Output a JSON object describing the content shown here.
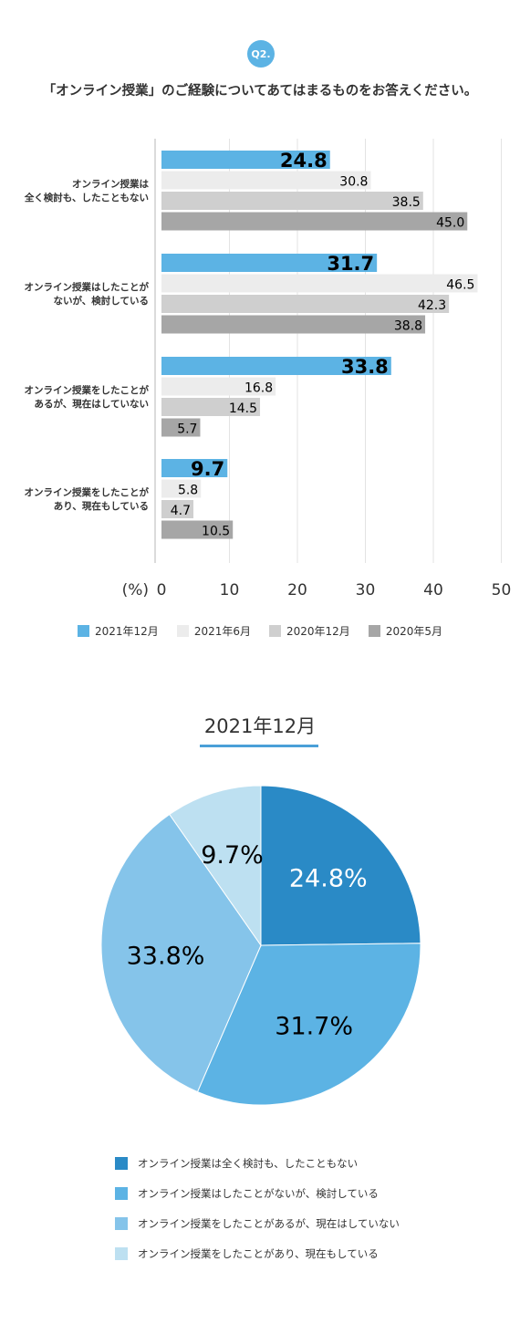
{
  "question": {
    "badge": "Q2.",
    "text": "「オンライン授業」のご経験についてあてはまるものをお答えください。"
  },
  "chart_data": [
    {
      "type": "bar",
      "orientation": "horizontal",
      "categories": [
        [
          "オンライン授業は",
          "全く検討も、したこともない"
        ],
        [
          "オンライン授業はしたことが",
          "ないが、検討している"
        ],
        [
          "オンライン授業をしたことが",
          "あるが、現在はしていない"
        ],
        [
          "オンライン授業をしたことが",
          "あり、現在もしている"
        ]
      ],
      "series": [
        {
          "name": "2021年12月",
          "values": [
            24.8,
            31.7,
            33.8,
            9.7
          ],
          "color": "#5cb3e4"
        },
        {
          "name": "2021年6月",
          "values": [
            30.8,
            46.5,
            16.8,
            5.8
          ],
          "color": "#ececec"
        },
        {
          "name": "2020年12月",
          "values": [
            38.5,
            42.3,
            14.5,
            4.7
          ],
          "color": "#cfcfcf"
        },
        {
          "name": "2020年5月",
          "values": [
            45.0,
            38.8,
            5.7,
            10.5
          ],
          "color": "#a6a6a6"
        }
      ],
      "xlim": [
        0,
        50
      ],
      "xticks": [
        0,
        10,
        20,
        30,
        40,
        50
      ],
      "xticklabels": [
        "0",
        "10",
        "20",
        "30",
        "40",
        "50"
      ],
      "xlabel": "(%)",
      "grid": true,
      "legend_position": "bottom"
    },
    {
      "type": "pie",
      "title": "2021年12月",
      "labels": [
        "オンライン授業は全く検討も、したこともない",
        "オンライン授業はしたことがないが、検討している",
        "オンライン授業をしたことがあるが、現在はしていない",
        "オンライン授業をしたことがあり、現在もしている"
      ],
      "values": [
        24.8,
        31.7,
        33.8,
        9.7
      ],
      "value_labels": [
        "24.8%",
        "31.7%",
        "33.8%",
        "9.7%"
      ],
      "colors": [
        "#2a8ac6",
        "#5cb3e4",
        "#85c4ea",
        "#bde0f1"
      ],
      "label_colors": [
        "#ffffff",
        "#000000",
        "#000000",
        "#000000"
      ],
      "legend_position": "bottom"
    }
  ]
}
